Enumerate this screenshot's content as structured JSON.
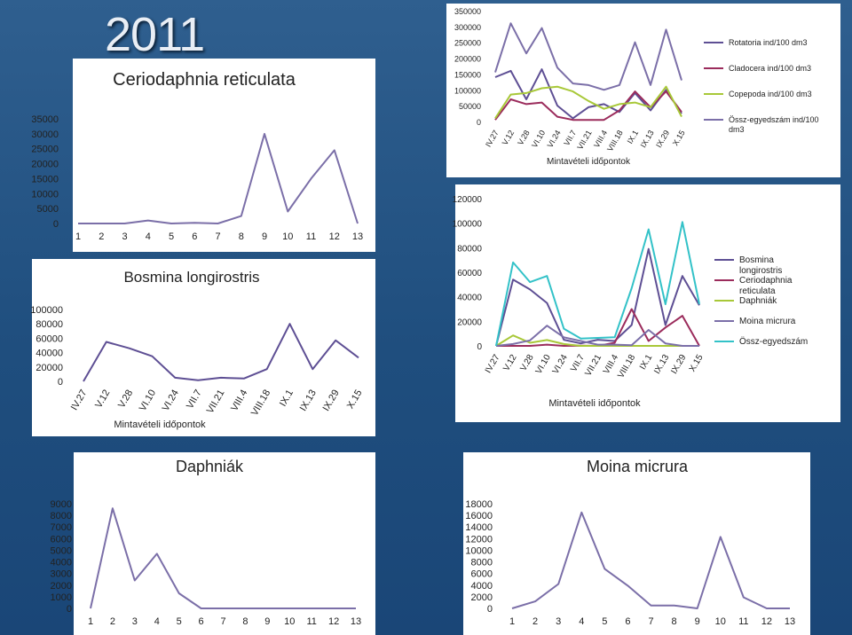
{
  "year_label": "2011",
  "axis_x_title": "Mintavételi időpontok",
  "chart_data": [
    {
      "id": "c1",
      "type": "line",
      "title": "Ceriodaphnia reticulata",
      "categories": [
        "1",
        "2",
        "3",
        "4",
        "5",
        "6",
        "7",
        "8",
        "9",
        "10",
        "11",
        "12",
        "13"
      ],
      "ylim": [
        0,
        35000
      ],
      "yticks": [
        0,
        5000,
        10000,
        15000,
        20000,
        25000,
        30000,
        35000
      ],
      "series": [
        {
          "values": [
            0,
            0,
            0,
            1000,
            0,
            200,
            0,
            2500,
            30000,
            4000,
            15000,
            24500,
            0
          ],
          "color": "#7b6fa8"
        }
      ]
    },
    {
      "id": "c2",
      "type": "line",
      "title": "Bosmina longirostris",
      "xlabel": "Mintavételi időpontok",
      "categories": [
        "IV.27",
        "V.12",
        "V.28",
        "VI.10",
        "VI.24",
        "VII.7",
        "VII.21",
        "VIII.4",
        "VIII.18",
        "IX.1",
        "IX.13",
        "IX.29",
        "X.15"
      ],
      "ylim": [
        0,
        100000
      ],
      "yticks": [
        0,
        20000,
        40000,
        60000,
        80000,
        100000
      ],
      "series": [
        {
          "values": [
            0,
            55000,
            46000,
            35000,
            5000,
            1500,
            5000,
            4000,
            17000,
            80000,
            17000,
            57000,
            33000
          ],
          "color": "#5e4f94"
        }
      ]
    },
    {
      "id": "c3",
      "type": "line",
      "xlabel": "Mintavételi időpontok",
      "categories": [
        "IV.27",
        "V.12",
        "V.28",
        "VI.10",
        "VI.24",
        "VII.7",
        "VII.21",
        "VIII.4",
        "VIII.18",
        "IX.1",
        "IX.13",
        "IX.29",
        "X.15"
      ],
      "ylim": [
        0,
        350000
      ],
      "yticks": [
        0,
        50000,
        100000,
        150000,
        200000,
        250000,
        300000,
        350000
      ],
      "legend": "right",
      "series": [
        {
          "name": "Rotatoria ind/100 dm3",
          "color": "#5e4f94",
          "values": [
            140000,
            160000,
            70000,
            165000,
            50000,
            10000,
            45000,
            55000,
            30000,
            90000,
            35000,
            100000,
            25000
          ]
        },
        {
          "name": "Cladocera ind/100 dm3",
          "color": "#9b2c5c",
          "values": [
            5000,
            70000,
            55000,
            60000,
            15000,
            5000,
            5000,
            5000,
            35000,
            95000,
            45000,
            95000,
            30000
          ]
        },
        {
          "name": "Copepoda ind/100 dm3",
          "color": "#a8c838",
          "values": [
            10000,
            85000,
            90000,
            105000,
            110000,
            95000,
            65000,
            40000,
            55000,
            60000,
            45000,
            110000,
            15000
          ]
        },
        {
          "name": "Össz-egyedszám ind/100 dm3",
          "color": "#7b6fa8",
          "values": [
            155000,
            310000,
            215000,
            295000,
            170000,
            120000,
            115000,
            100000,
            115000,
            250000,
            115000,
            290000,
            130000
          ]
        }
      ]
    },
    {
      "id": "c4",
      "type": "line",
      "xlabel": "Mintavételi időpontok",
      "categories": [
        "IV.27",
        "V.12",
        "V.28",
        "VI.10",
        "VI.24",
        "VII.7",
        "VII.21",
        "VIII.4",
        "VIII.18",
        "IX.1",
        "IX.13",
        "IX.29",
        "X.15"
      ],
      "ylim": [
        0,
        120000
      ],
      "yticks": [
        0,
        20000,
        40000,
        60000,
        80000,
        100000,
        120000
      ],
      "legend": "right",
      "series": [
        {
          "name": "Bosmina longirostris",
          "color": "#5e4f94",
          "values": [
            0,
            54000,
            46000,
            35000,
            5000,
            2000,
            5000,
            4000,
            17000,
            79000,
            17000,
            57000,
            33000
          ]
        },
        {
          "name": "Ceriodaphnia reticulata",
          "color": "#9b2c5c",
          "values": [
            0,
            0,
            0,
            1000,
            0,
            200,
            0,
            2500,
            30000,
            4000,
            15000,
            24500,
            0
          ]
        },
        {
          "name": "Daphniák",
          "color": "#a8c838",
          "values": [
            0,
            8500,
            2500,
            4800,
            1500,
            0,
            0,
            0,
            0,
            0,
            0,
            0,
            0
          ]
        },
        {
          "name": "Moina micrura",
          "color": "#7b6fa8",
          "values": [
            0,
            1500,
            4500,
            16500,
            7000,
            4000,
            1000,
            1000,
            500,
            13000,
            2000,
            0,
            0
          ]
        },
        {
          "name": "Össz-egyedszám",
          "color": "#33c2c8",
          "values": [
            0,
            68000,
            52000,
            57000,
            14000,
            6000,
            6500,
            7000,
            47000,
            95000,
            34000,
            101000,
            34000
          ]
        }
      ]
    },
    {
      "id": "c5",
      "type": "line",
      "title": "Daphniák",
      "categories": [
        "1",
        "2",
        "3",
        "4",
        "5",
        "6",
        "7",
        "8",
        "9",
        "10",
        "11",
        "12",
        "13"
      ],
      "ylim": [
        0,
        9000
      ],
      "yticks": [
        0,
        1000,
        2000,
        3000,
        4000,
        5000,
        6000,
        7000,
        8000,
        9000
      ],
      "series": [
        {
          "values": [
            0,
            8600,
            2400,
            4700,
            1300,
            0,
            0,
            0,
            0,
            0,
            0,
            0,
            0
          ],
          "color": "#7b6fa8"
        }
      ]
    },
    {
      "id": "c6",
      "type": "line",
      "title": "Moina micrura",
      "categories": [
        "1",
        "2",
        "3",
        "4",
        "5",
        "6",
        "7",
        "8",
        "9",
        "10",
        "11",
        "12",
        "13"
      ],
      "ylim": [
        0,
        18000
      ],
      "yticks": [
        0,
        2000,
        4000,
        6000,
        8000,
        10000,
        12000,
        14000,
        16000,
        18000
      ],
      "series": [
        {
          "values": [
            0,
            1200,
            4200,
            16500,
            6800,
            3900,
            500,
            500,
            0,
            12300,
            1900,
            0,
            0
          ],
          "color": "#7b6fa8"
        }
      ]
    }
  ]
}
